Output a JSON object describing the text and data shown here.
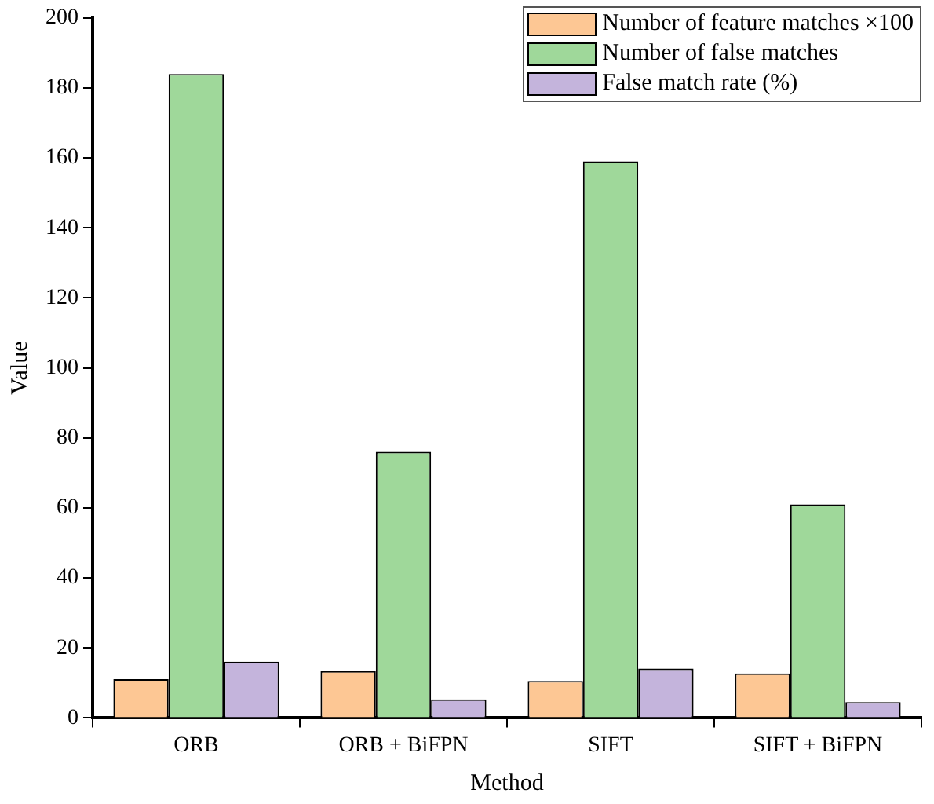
{
  "chart_data": {
    "type": "bar",
    "xlabel": "Method",
    "ylabel": "Value",
    "categories": [
      "ORB",
      "ORB + BiFPN",
      "SIFT",
      "SIFT + BiFPN"
    ],
    "series": [
      {
        "name": "Number of feature matches ×100",
        "color": "#fdc794",
        "values": [
          11.1,
          13.4,
          10.6,
          12.7
        ]
      },
      {
        "name": "Number of false matches",
        "color": "#9fd89a",
        "values": [
          184,
          76,
          159,
          61
        ]
      },
      {
        "name": "False match rate (%)",
        "color": "#c4b4dc",
        "values": [
          16.1,
          5.3,
          14.1,
          4.5
        ]
      }
    ],
    "ylim": [
      0,
      200
    ],
    "yticks": [
      0,
      20,
      40,
      60,
      80,
      100,
      120,
      140,
      160,
      180,
      200
    ],
    "grid": false,
    "legend": "top right"
  }
}
